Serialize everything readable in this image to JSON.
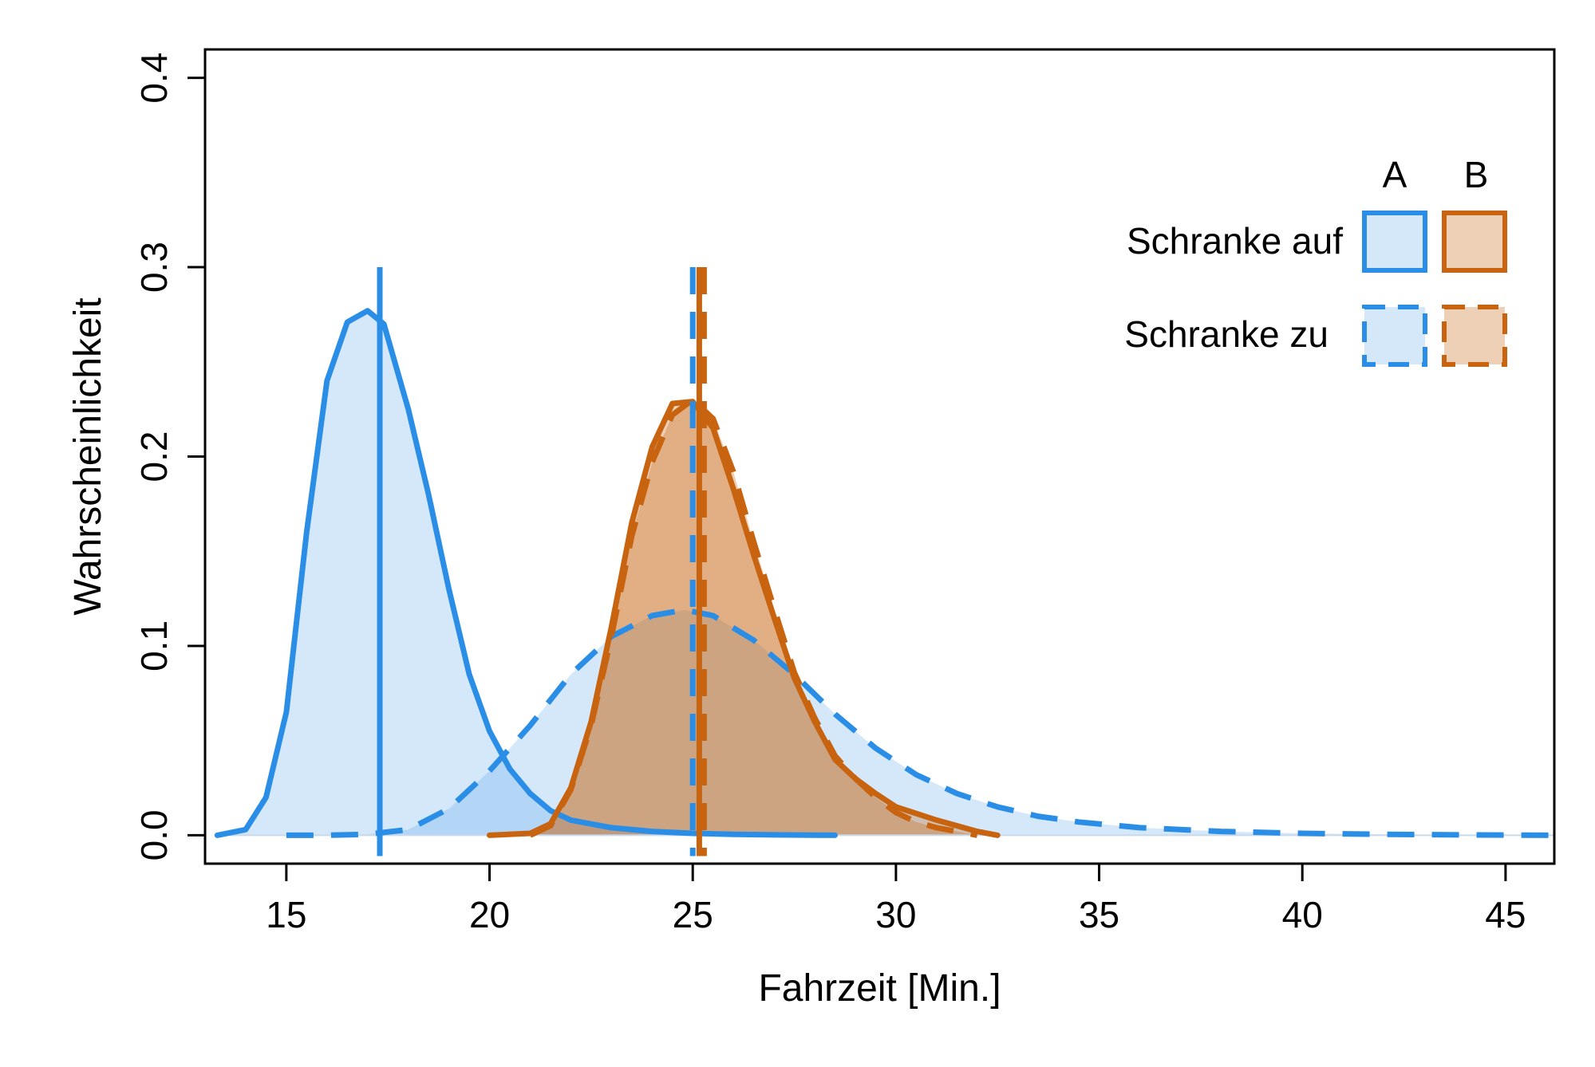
{
  "colors": {
    "A": "#2B8EE6",
    "B": "#C8630F",
    "A_fill": "#D6E8FA",
    "B_fill": "#EFD3B5",
    "overlap_fill": "#D1BFA7"
  },
  "chart_data": {
    "type": "area",
    "title": "",
    "xlabel": "Fahrzeit [Min.]",
    "ylabel": "Wahrscheinlichkeit",
    "xlim": [
      13,
      46.2
    ],
    "ylim": [
      -0.015,
      0.415
    ],
    "x_ticks": [
      15,
      20,
      25,
      30,
      35,
      40,
      45
    ],
    "y_ticks": [
      0.0,
      0.1,
      0.2,
      0.3,
      0.4
    ],
    "x_tick_labels": [
      "15",
      "20",
      "25",
      "30",
      "35",
      "40",
      "45"
    ],
    "y_tick_labels": [
      "0.0",
      "0.1",
      "0.2",
      "0.3",
      "0.4"
    ],
    "grid": false,
    "legend": {
      "position": "top-right",
      "column_headers": [
        "A",
        "B"
      ],
      "row_labels": [
        "Schranke auf",
        "Schranke zu"
      ]
    },
    "series": [
      {
        "name": "Schranke auf – A",
        "group": "A",
        "style": "solid",
        "x": [
          13.3,
          14.0,
          14.5,
          15.0,
          15.5,
          16.0,
          16.5,
          17.0,
          17.4,
          18.0,
          18.5,
          19.0,
          19.5,
          20.0,
          20.5,
          21.0,
          21.5,
          22.0,
          23.0,
          24.0,
          25.0,
          26.0,
          27.0,
          28.5
        ],
        "y": [
          0.0,
          0.003,
          0.02,
          0.065,
          0.16,
          0.24,
          0.271,
          0.277,
          0.27,
          0.225,
          0.18,
          0.13,
          0.085,
          0.055,
          0.035,
          0.022,
          0.013,
          0.008,
          0.004,
          0.002,
          0.001,
          0.0005,
          0.0002,
          0.0
        ],
        "mean_line": 17.3
      },
      {
        "name": "Schranke zu – A",
        "group": "A",
        "style": "dashed",
        "x": [
          15.0,
          16.0,
          17.0,
          18.0,
          19.0,
          20.0,
          21.0,
          22.0,
          23.0,
          24.0,
          24.8,
          25.5,
          26.5,
          27.5,
          28.5,
          29.5,
          30.5,
          31.5,
          32.5,
          33.5,
          34.5,
          36.0,
          38.0,
          40.0,
          42.0,
          44.0,
          46.2
        ],
        "y": [
          0.0,
          0.0,
          0.0005,
          0.003,
          0.014,
          0.034,
          0.058,
          0.085,
          0.105,
          0.116,
          0.119,
          0.116,
          0.103,
          0.085,
          0.064,
          0.046,
          0.032,
          0.022,
          0.015,
          0.01,
          0.007,
          0.004,
          0.002,
          0.001,
          0.0005,
          0.0002,
          0.0
        ],
        "mean_line": 25.0
      },
      {
        "name": "Schranke auf – B",
        "group": "B",
        "style": "solid",
        "x": [
          20.0,
          21.0,
          21.5,
          22.0,
          22.5,
          23.0,
          23.5,
          24.0,
          24.5,
          25.0,
          25.5,
          26.0,
          26.5,
          27.0,
          27.5,
          28.0,
          28.5,
          29.0,
          29.5,
          30.0,
          31.0,
          31.5,
          32.0,
          32.5
        ],
        "y": [
          0.0,
          0.001,
          0.006,
          0.025,
          0.06,
          0.11,
          0.165,
          0.205,
          0.228,
          0.229,
          0.215,
          0.183,
          0.148,
          0.115,
          0.083,
          0.06,
          0.04,
          0.03,
          0.022,
          0.015,
          0.008,
          0.005,
          0.002,
          0.0
        ],
        "mean_line": 25.2
      },
      {
        "name": "Schranke zu – B",
        "group": "B",
        "style": "dashed",
        "x": [
          21.0,
          21.5,
          22.0,
          22.5,
          23.0,
          23.5,
          24.0,
          24.5,
          25.0,
          25.5,
          26.0,
          26.5,
          27.0,
          27.5,
          28.0,
          28.5,
          29.0,
          29.5,
          30.0,
          30.5,
          31.0,
          31.5,
          32.0
        ],
        "y": [
          0.0,
          0.005,
          0.024,
          0.058,
          0.105,
          0.158,
          0.197,
          0.222,
          0.23,
          0.22,
          0.192,
          0.155,
          0.12,
          0.086,
          0.062,
          0.042,
          0.03,
          0.02,
          0.012,
          0.007,
          0.004,
          0.002,
          0.0
        ],
        "mean_line": 25.2
      }
    ]
  }
}
